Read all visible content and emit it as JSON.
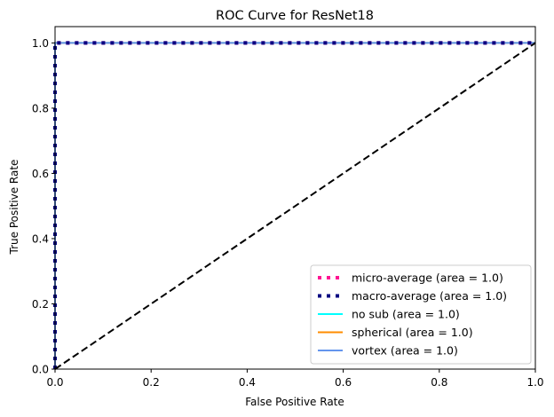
{
  "chart_data": {
    "type": "line",
    "title": "ROC Curve for ResNet18",
    "xlabel": "False Positive Rate",
    "ylabel": "True Positive Rate",
    "xlim": [
      0.0,
      1.0
    ],
    "ylim": [
      0.0,
      1.05
    ],
    "xticks": [
      "0.0",
      "0.2",
      "0.4",
      "0.6",
      "0.8",
      "1.0"
    ],
    "yticks": [
      "0.0",
      "0.2",
      "0.4",
      "0.6",
      "0.8",
      "1.0"
    ],
    "xtick_values": [
      0,
      0.2,
      0.4,
      0.6,
      0.8,
      1.0
    ],
    "ytick_values": [
      0,
      0.2,
      0.4,
      0.6,
      0.8,
      1.0
    ],
    "grid": false,
    "legend_position": "lower right",
    "series": [
      {
        "name": "micro-average (area = 1.0)",
        "color": "#ff1493",
        "style": "dotted",
        "x": [
          0.0,
          0.0,
          1.0
        ],
        "y": [
          0.0,
          1.0,
          1.0
        ]
      },
      {
        "name": "macro-average (area = 1.0)",
        "color": "#000080",
        "style": "dotted",
        "x": [
          0.0,
          0.0,
          1.0
        ],
        "y": [
          0.0,
          1.0,
          1.0
        ]
      },
      {
        "name": "no sub (area = 1.0)",
        "color": "#00ffff",
        "style": "solid",
        "x": [
          0.0,
          0.0,
          1.0
        ],
        "y": [
          0.0,
          1.0,
          1.0
        ]
      },
      {
        "name": "spherical (area = 1.0)",
        "color": "#ff8c00",
        "style": "solid",
        "x": [
          0.0,
          0.0,
          1.0
        ],
        "y": [
          0.0,
          1.0,
          1.0
        ]
      },
      {
        "name": "vortex (area = 1.0)",
        "color": "#6495ed",
        "style": "solid",
        "x": [
          0.0,
          0.0,
          1.0
        ],
        "y": [
          0.0,
          1.0,
          1.0
        ]
      }
    ],
    "reference_line": {
      "color": "#000000",
      "style": "dashed",
      "x": [
        0.0,
        1.0
      ],
      "y": [
        0.0,
        1.0
      ]
    }
  }
}
